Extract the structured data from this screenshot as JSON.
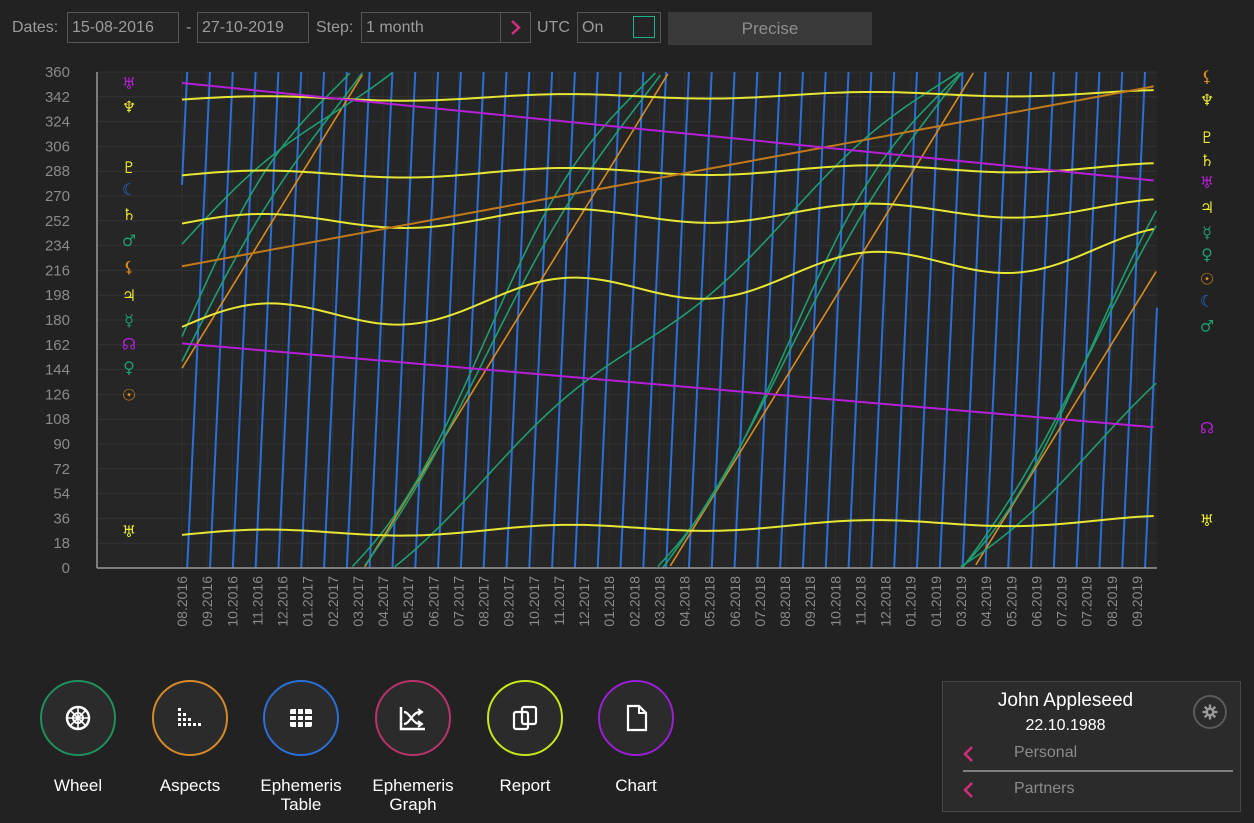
{
  "toolbar": {
    "dates_label": "Dates:",
    "date_from": "15-08-2016",
    "date_sep": "-",
    "date_to": "27-10-2019",
    "step_label": "Step:",
    "step_value": "1 month",
    "utc_label": "UTC",
    "utc_value": "On",
    "precise_label": "Precise"
  },
  "chart_data": {
    "type": "line",
    "ylim": [
      0,
      360
    ],
    "y_ticks": [
      "360",
      "342",
      "324",
      "306",
      "288",
      "270",
      "252",
      "234",
      "216",
      "198",
      "180",
      "162",
      "144",
      "126",
      "108",
      "90",
      "72",
      "54",
      "36",
      "18",
      "0"
    ],
    "x_labels": [
      "08.2016",
      "09.2016",
      "10.2016",
      "11.2016",
      "12.2016",
      "01.2017",
      "02.2017",
      "03.2017",
      "04.2017",
      "05.2017",
      "06.2017",
      "07.2017",
      "08.2017",
      "09.2017",
      "10.2017",
      "11.2017",
      "12.2017",
      "01.2018",
      "02.2018",
      "03.2018",
      "04.2018",
      "05.2018",
      "06.2018",
      "07.2018",
      "08.2018",
      "09.2018",
      "10.2018",
      "11.2018",
      "12.2018",
      "01.2019",
      "01.2019",
      "03.2019",
      "04.2019",
      "05.2019",
      "06.2019",
      "07.2019",
      "07.2019",
      "08.2019",
      "09.2019"
    ],
    "colors": {
      "moon": "#2a6fd6",
      "outer": "#e6e635",
      "inner": "#1e9e6e",
      "sun": "#d98c1e",
      "node": "#b51fd6",
      "lilith": "#c07a1a",
      "uranus": "#b51fd6"
    },
    "series": [
      {
        "glyph": "♆",
        "values_start": 340,
        "values_end": 345
      },
      {
        "glyph": "♇",
        "values_start": 285,
        "values_end": 291
      },
      {
        "glyph": "♄",
        "values_start": 250,
        "values_end": 262
      },
      {
        "glyph": "♃",
        "values_start": 175,
        "values_end": 235
      },
      {
        "glyph": "♅",
        "values_start": 24,
        "values_end": 35
      },
      {
        "glyph": "☊",
        "values_start": 163,
        "values_end": 102
      },
      {
        "glyph": "⚷",
        "values_start": 219,
        "values_end": 350
      }
    ],
    "left_glyphs": [
      {
        "glyph": "♅",
        "y": 352,
        "color": "#b51fd6"
      },
      {
        "glyph": "♆",
        "y": 335,
        "color": "#e6e635"
      },
      {
        "glyph": "♇",
        "y": 291,
        "color": "#e6e635"
      },
      {
        "glyph": "☾",
        "y": 275,
        "color": "#2a6fd6"
      },
      {
        "glyph": "♄",
        "y": 257,
        "color": "#e6e635"
      },
      {
        "glyph": "♂",
        "y": 238,
        "color": "#1e9e6e"
      },
      {
        "glyph": "⚸",
        "y": 219,
        "color": "#d98c1e"
      },
      {
        "glyph": "♃",
        "y": 198,
        "color": "#e6e635"
      },
      {
        "glyph": "☿",
        "y": 180,
        "color": "#1e9e6e"
      },
      {
        "glyph": "☊",
        "y": 163,
        "color": "#b51fd6"
      },
      {
        "glyph": "♀",
        "y": 146,
        "color": "#1e9e6e"
      },
      {
        "glyph": "☉",
        "y": 126,
        "color": "#d98c1e"
      },
      {
        "glyph": "♅",
        "y": 27,
        "color": "#e6e635"
      }
    ],
    "right_glyphs": [
      {
        "glyph": "⚸",
        "y": 357,
        "color": "#d98c1e"
      },
      {
        "glyph": "♆",
        "y": 340,
        "color": "#e6e635"
      },
      {
        "glyph": "♇",
        "y": 313,
        "color": "#e6e635"
      },
      {
        "glyph": "♄",
        "y": 296,
        "color": "#e6e635"
      },
      {
        "glyph": "♅",
        "y": 280,
        "color": "#b51fd6"
      },
      {
        "glyph": "♃",
        "y": 262,
        "color": "#e6e635"
      },
      {
        "glyph": "☿",
        "y": 244,
        "color": "#1e9e6e"
      },
      {
        "glyph": "♀",
        "y": 228,
        "color": "#1e9e6e"
      },
      {
        "glyph": "☉",
        "y": 210,
        "color": "#d98c1e"
      },
      {
        "glyph": "☾",
        "y": 194,
        "color": "#2a6fd6"
      },
      {
        "glyph": "♂",
        "y": 176,
        "color": "#1e9e6e"
      },
      {
        "glyph": "☊",
        "y": 102,
        "color": "#b51fd6"
      },
      {
        "glyph": "♅",
        "y": 35,
        "color": "#e6e635"
      }
    ]
  },
  "nav": [
    {
      "label": "Wheel",
      "color": "#1f8f5e",
      "icon": "wheel-icon"
    },
    {
      "label": "Aspects",
      "color": "#d6892a",
      "icon": "aspects-icon"
    },
    {
      "label": "Ephemeris\nTable",
      "color": "#2a6fd6",
      "icon": "table-icon"
    },
    {
      "label": "Ephemeris\nGraph",
      "color": "#b8336a",
      "icon": "graph-icon"
    },
    {
      "label": "Report",
      "color": "#c8e61a",
      "icon": "report-icon"
    },
    {
      "label": "Chart",
      "color": "#9a1fd6",
      "icon": "chart-icon"
    }
  ],
  "profile": {
    "name": "John Appleseed",
    "date": "22.10.1988",
    "personal_label": "Personal",
    "partners_label": "Partners",
    "accent": "#d0307a"
  }
}
